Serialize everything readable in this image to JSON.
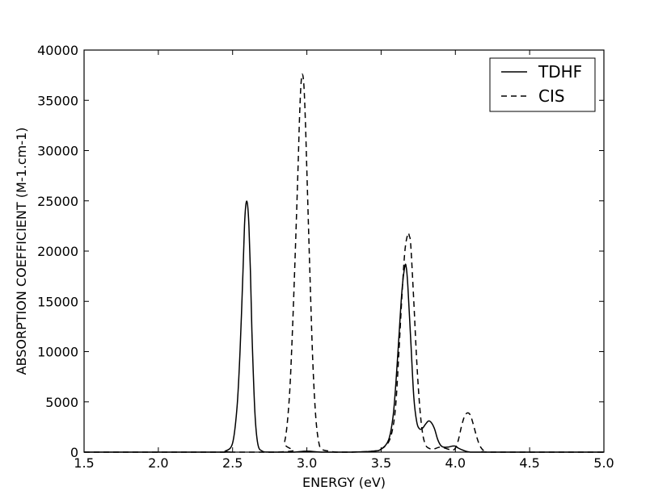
{
  "chart_data": {
    "type": "line",
    "title": "",
    "xlabel": "ENERGY (eV)",
    "ylabel": "ABSORPTION COEFFICIENT (M-1.cm-1)",
    "xlim": [
      1.5,
      5.0
    ],
    "ylim": [
      0,
      40000
    ],
    "xticks": [
      1.5,
      2.0,
      2.5,
      3.0,
      3.5,
      4.0,
      4.5,
      5.0
    ],
    "xtick_labels": [
      "1.5",
      "2.0",
      "2.5",
      "3.0",
      "3.5",
      "4.0",
      "4.5",
      "5.0"
    ],
    "yticks": [
      0,
      5000,
      10000,
      15000,
      20000,
      25000,
      30000,
      35000,
      40000
    ],
    "ytick_labels": [
      "0",
      "5000",
      "10000",
      "15000",
      "20000",
      "25000",
      "30000",
      "35000",
      "40000"
    ],
    "grid": false,
    "legend_position": "top-right",
    "series": [
      {
        "name": "TDHF",
        "style": "solid",
        "color": "#000000",
        "x": [
          1.5,
          2.4,
          2.45,
          2.5,
          2.53,
          2.55,
          2.57,
          2.58,
          2.59,
          2.6,
          2.61,
          2.62,
          2.63,
          2.65,
          2.67,
          2.7,
          2.75,
          2.9,
          3.0,
          3.1,
          3.3,
          3.45,
          3.5,
          3.55,
          3.58,
          3.6,
          3.62,
          3.64,
          3.66,
          3.67,
          3.68,
          3.7,
          3.72,
          3.74,
          3.76,
          3.78,
          3.8,
          3.82,
          3.84,
          3.86,
          3.88,
          3.9,
          3.92,
          3.95,
          3.98,
          4.0,
          4.02,
          4.05,
          4.1,
          4.2,
          5.0
        ],
        "y": [
          0,
          0,
          100,
          900,
          4500,
          10000,
          18000,
          22500,
          24700,
          24700,
          22500,
          18000,
          12000,
          4000,
          800,
          100,
          0,
          0,
          100,
          0,
          0,
          100,
          300,
          1200,
          3500,
          7000,
          11500,
          16000,
          18500,
          18300,
          16500,
          11000,
          5500,
          3000,
          2300,
          2400,
          2800,
          3100,
          2900,
          2300,
          1300,
          700,
          500,
          500,
          600,
          600,
          400,
          200,
          0,
          0,
          0
        ]
      },
      {
        "name": "CIS",
        "style": "dashed",
        "color": "#000000",
        "x": [
          1.5,
          2.8,
          2.85,
          2.88,
          2.9,
          2.92,
          2.94,
          2.95,
          2.96,
          2.97,
          2.98,
          2.99,
          3.0,
          3.02,
          3.04,
          3.06,
          3.08,
          3.1,
          3.15,
          3.2,
          3.3,
          3.45,
          3.5,
          3.55,
          3.58,
          3.6,
          3.62,
          3.64,
          3.66,
          3.68,
          3.69,
          3.7,
          3.72,
          3.74,
          3.76,
          3.78,
          3.8,
          3.82,
          3.85,
          3.9,
          3.95,
          3.98,
          4.0,
          4.02,
          4.04,
          4.06,
          4.08,
          4.1,
          4.12,
          4.14,
          4.16,
          4.18,
          4.2,
          4.25,
          5.0
        ],
        "y": [
          0,
          0,
          1000,
          5000,
          11000,
          19000,
          28000,
          33000,
          36500,
          37600,
          36500,
          33000,
          28000,
          18000,
          9000,
          3500,
          1000,
          300,
          100,
          0,
          0,
          100,
          300,
          1000,
          2500,
          5000,
          10000,
          15500,
          20000,
          21700,
          21500,
          20500,
          15000,
          9000,
          4500,
          1800,
          700,
          400,
          300,
          500,
          300,
          200,
          400,
          1200,
          2500,
          3500,
          3900,
          3700,
          2800,
          1700,
          800,
          300,
          100,
          0,
          0
        ]
      }
    ]
  }
}
